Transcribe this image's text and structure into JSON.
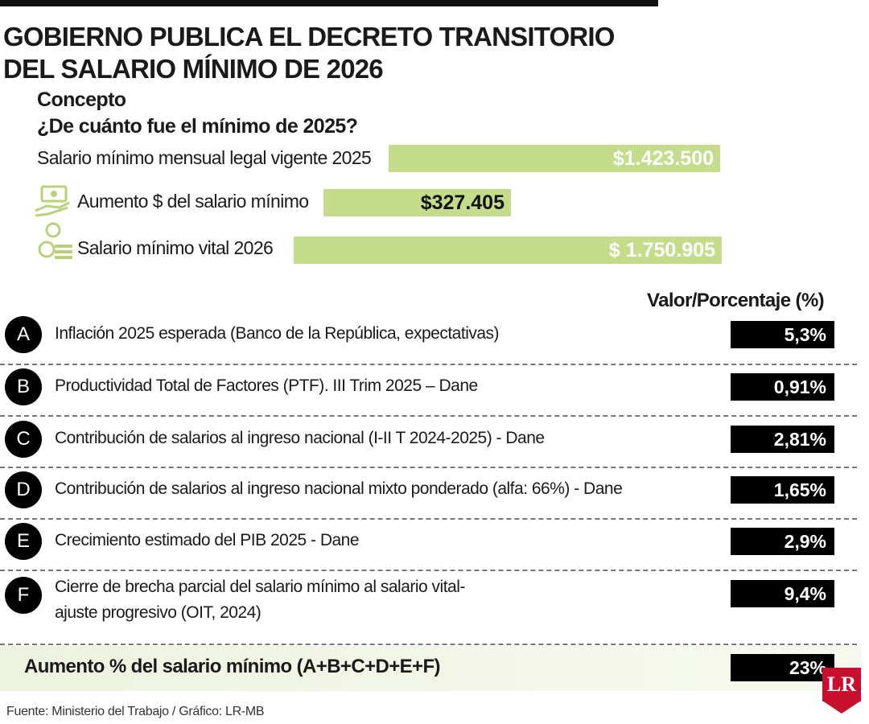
{
  "header": {
    "title_lines": [
      "GOBIERNO PUBLICA EL DECRETO TRANSITORIO",
      "DEL SALARIO MÍNIMO DE 2026"
    ]
  },
  "concept": {
    "heading": "Concepto",
    "question": "¿De cuánto fue el mínimo de 2025?",
    "items": [
      {
        "label": "Salario mínimo mensual legal vigente 2025",
        "value": "$1.423.500"
      },
      {
        "label": "Aumento $ del salario mínimo",
        "value": "$327.405"
      },
      {
        "label": "Salario mínimo vital 2026",
        "value": "$ 1.750.905"
      }
    ]
  },
  "table": {
    "column_header": "Valor/Porcentaje (%)",
    "rows": [
      {
        "letter": "A",
        "label": "Inflación 2025 esperada (Banco de la República, expectativas)",
        "value": "5,3%"
      },
      {
        "letter": "B",
        "label": "Productividad Total de Factores (PTF). III Trim 2025 – Dane",
        "value": "0,91%"
      },
      {
        "letter": "C",
        "label": "Contribución de salarios al ingreso nacional (I-II T 2024-2025) - Dane",
        "value": "2,81%"
      },
      {
        "letter": "D",
        "label": "Contribución de salarios al ingreso nacional mixto ponderado (alfa: 66%) - Dane",
        "value": "1,65%"
      },
      {
        "letter": "E",
        "label": "Crecimiento estimado del PIB 2025 - Dane",
        "value": "2,9%"
      },
      {
        "letter": "F",
        "label": "Cierre de brecha parcial del salario mínimo al salario vital-ajuste progresivo (OIT, 2024)",
        "value": "9,4%"
      }
    ],
    "total": {
      "label": "Aumento % del salario mínimo (A+B+C+D+E+F)",
      "value": "23%"
    }
  },
  "footer": {
    "source": "Fuente: Ministerio del Trabajo / Gráfico: LR-MB",
    "logo": "LR"
  }
}
